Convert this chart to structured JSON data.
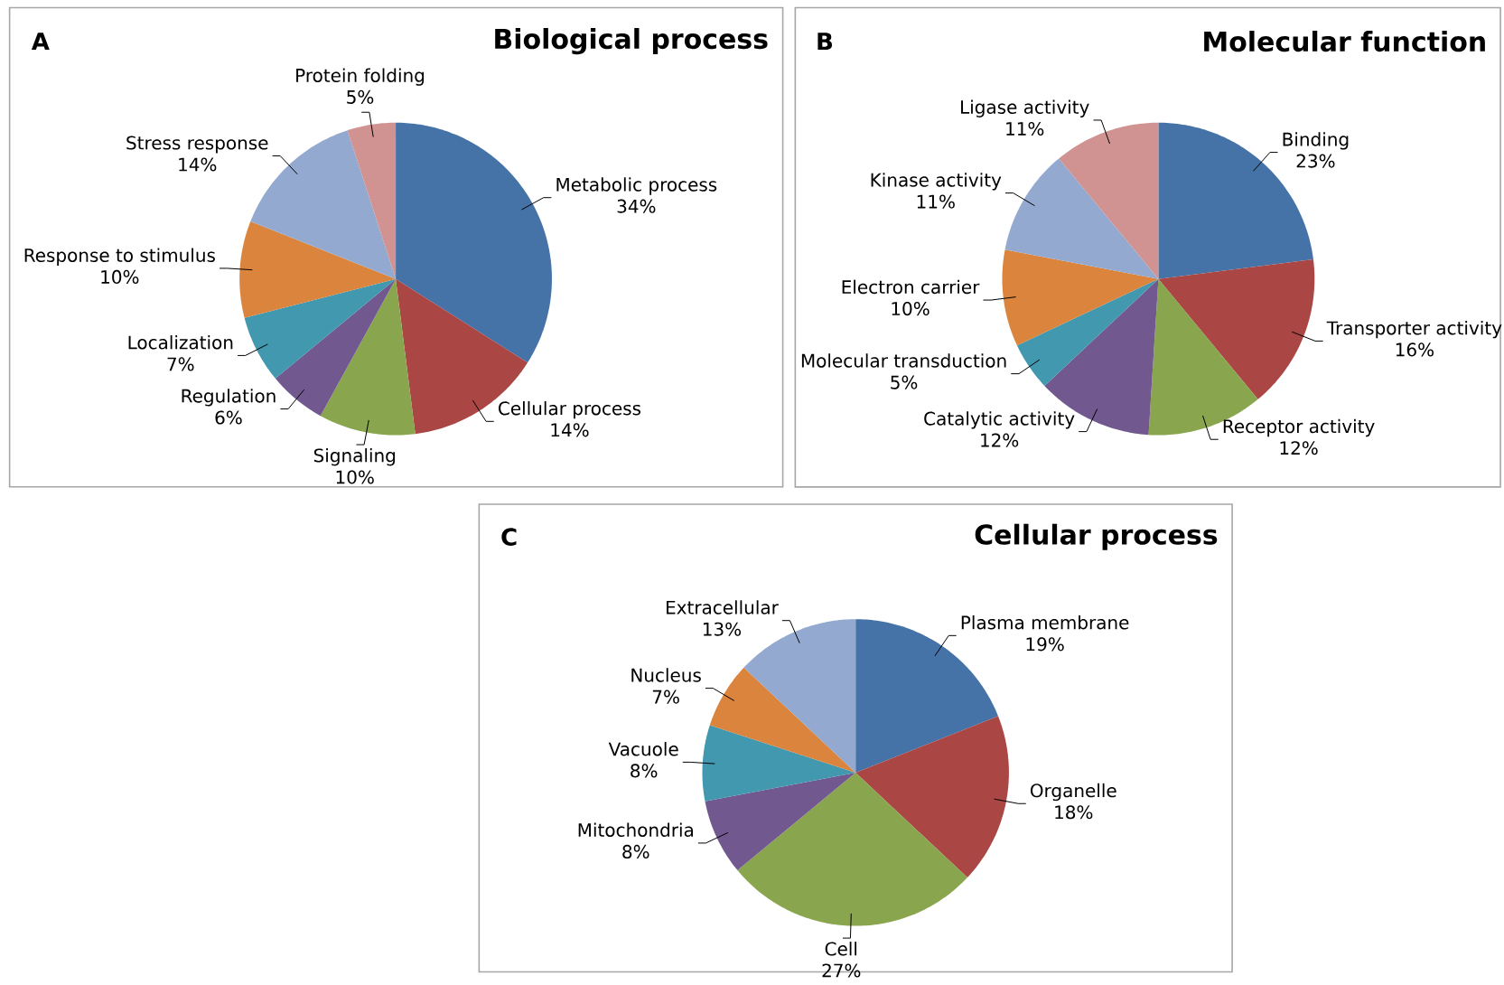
{
  "chart_data": [
    {
      "type": "pie",
      "title": "Biological process",
      "annotations": [
        "A"
      ],
      "categories": [
        "Metabolic process",
        "Cellular process",
        "Signaling",
        "Regulation",
        "Localization",
        "Response to stimulus",
        "Stress response",
        "Protein folding"
      ],
      "values": [
        34,
        14,
        10,
        6,
        7,
        10,
        14,
        5
      ],
      "value_labels": [
        "34%",
        "14%",
        "10%",
        "6%",
        "7%",
        "10%",
        "14%",
        "5%"
      ],
      "colors": [
        "#4572a7",
        "#aa4643",
        "#89a54e",
        "#71588f",
        "#4198af",
        "#db843d",
        "#93a9cf",
        "#d19392"
      ]
    },
    {
      "type": "pie",
      "title": "Molecular function",
      "annotations": [
        "B"
      ],
      "categories": [
        "Binding",
        "Transporter activity",
        "Receptor activity",
        "Catalytic activity",
        "Molecular transduction",
        "Electron carrier",
        "Kinase activity",
        "Ligase activity"
      ],
      "values": [
        23,
        16,
        12,
        12,
        5,
        10,
        11,
        11
      ],
      "value_labels": [
        "23%",
        "16%",
        "12%",
        "12%",
        "5%",
        "10%",
        "11%",
        "11%"
      ],
      "colors": [
        "#4572a7",
        "#aa4643",
        "#89a54e",
        "#71588f",
        "#4198af",
        "#db843d",
        "#93a9cf",
        "#d19392"
      ]
    },
    {
      "type": "pie",
      "title": "Cellular process",
      "annotations": [
        "C"
      ],
      "categories": [
        "Plasma membrane",
        "Organelle",
        "Cell",
        "Mitochondria",
        "Vacuole",
        "Nucleus",
        "Extracellular"
      ],
      "values": [
        19,
        18,
        27,
        8,
        8,
        7,
        13
      ],
      "value_labels": [
        "19%",
        "18%",
        "27%",
        "8%",
        "8%",
        "7%",
        "13%"
      ],
      "colors": [
        "#4572a7",
        "#aa4643",
        "#89a54e",
        "#71588f",
        "#4198af",
        "#db843d",
        "#93a9cf"
      ]
    }
  ]
}
